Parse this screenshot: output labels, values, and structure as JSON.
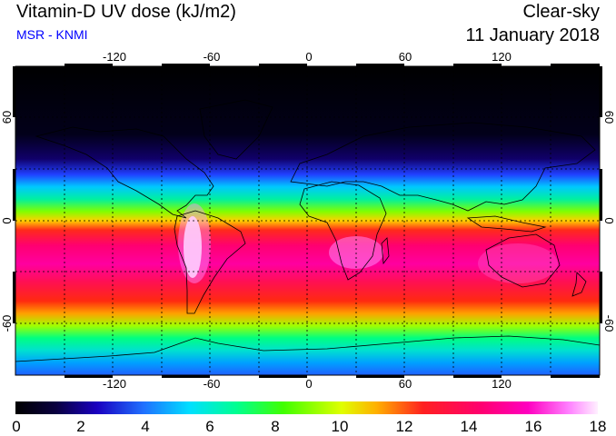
{
  "header": {
    "title": "Vitamin-D UV dose (kJ/m2)",
    "subtitle": "MSR - KNMI",
    "sky_condition": "Clear-sky",
    "date": "11 January 2018"
  },
  "colors": {
    "subtitle": "#0000ff",
    "scale": [
      "#000000",
      "#06002a",
      "#1a0080",
      "#2030ff",
      "#00b4ff",
      "#00e6c8",
      "#00ff60",
      "#9cff00",
      "#ffff00",
      "#ffb000",
      "#ff2020",
      "#ff0060",
      "#ff00b0",
      "#ff80ff",
      "#ffe0ff"
    ]
  },
  "map": {
    "lon_ticks": [
      "-120",
      "-60",
      "0",
      "60",
      "120"
    ],
    "lat_ticks": [
      "60",
      "0",
      "-60"
    ]
  },
  "colorbar": {
    "labels": [
      "0",
      "2",
      "4",
      "6",
      "8",
      "10",
      "12",
      "14",
      "16",
      "18"
    ]
  }
}
